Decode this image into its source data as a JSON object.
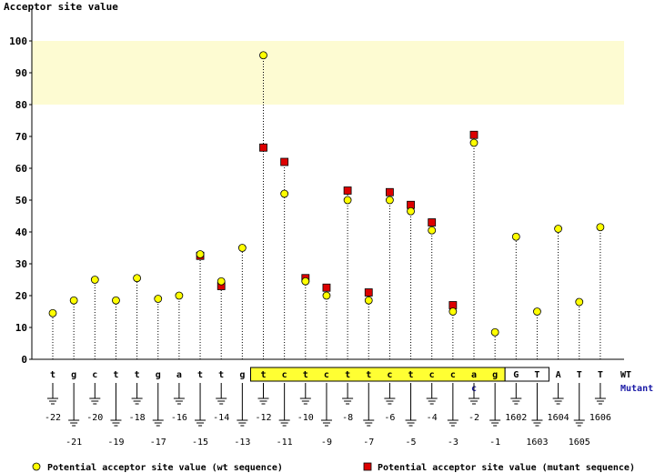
{
  "chart_data": {
    "type": "scatter",
    "title": "Acceptor site value",
    "ylim": [
      0,
      100
    ],
    "yticks": [
      0,
      10,
      20,
      30,
      40,
      50,
      60,
      70,
      80,
      90,
      100
    ],
    "highlight_band": [
      80,
      100
    ],
    "wt_row_label": "WT",
    "mutant_row_label": "Mutant",
    "positions": [
      {
        "base": "t",
        "pos": "-22",
        "wt": 14.5,
        "mut": null
      },
      {
        "base": "g",
        "pos": "-21",
        "wt": 18.5,
        "mut": null
      },
      {
        "base": "c",
        "pos": "-20",
        "wt": 25,
        "mut": null
      },
      {
        "base": "t",
        "pos": "-19",
        "wt": 18.5,
        "mut": null
      },
      {
        "base": "t",
        "pos": "-18",
        "wt": 25.5,
        "mut": null
      },
      {
        "base": "g",
        "pos": "-17",
        "wt": 19,
        "mut": null
      },
      {
        "base": "a",
        "pos": "-16",
        "wt": 20,
        "mut": null
      },
      {
        "base": "t",
        "pos": "-15",
        "wt": 33,
        "mut": 32.5
      },
      {
        "base": "t",
        "pos": "-14",
        "wt": 24.5,
        "mut": 23
      },
      {
        "base": "g",
        "pos": "-13",
        "wt": 35,
        "mut": null
      },
      {
        "base": "t",
        "pos": "-12",
        "wt": 95.5,
        "mut": 66.5
      },
      {
        "base": "c",
        "pos": "-11",
        "wt": 52,
        "mut": 62
      },
      {
        "base": "t",
        "pos": "-10",
        "wt": 24.5,
        "mut": 25.5
      },
      {
        "base": "c",
        "pos": "-9",
        "wt": 20,
        "mut": 22.5
      },
      {
        "base": "t",
        "pos": "-8",
        "wt": 50,
        "mut": 53
      },
      {
        "base": "t",
        "pos": "-7",
        "wt": 18.5,
        "mut": 21
      },
      {
        "base": "c",
        "pos": "-6",
        "wt": 50,
        "mut": 52.5
      },
      {
        "base": "t",
        "pos": "-5",
        "wt": 46.5,
        "mut": 48.5
      },
      {
        "base": "c",
        "pos": "-4",
        "wt": 40.5,
        "mut": 43
      },
      {
        "base": "c",
        "pos": "-3",
        "wt": 15,
        "mut": 17
      },
      {
        "base": "a",
        "pos": "-2",
        "wt": 68,
        "mut": 70.5,
        "mut_base": "c"
      },
      {
        "base": "g",
        "pos": "-1",
        "wt": 8.5,
        "mut": null
      },
      {
        "base": "G",
        "pos": "1602",
        "wt": 38.5,
        "mut": null
      },
      {
        "base": "T",
        "pos": "1603",
        "wt": 15,
        "mut": null
      },
      {
        "base": "A",
        "pos": "1604",
        "wt": 41,
        "mut": null
      },
      {
        "base": "T",
        "pos": "1605",
        "wt": 18,
        "mut": null
      },
      {
        "base": "T",
        "pos": "1606",
        "wt": 41.5,
        "mut": null
      }
    ],
    "legend": {
      "wt": "Potential acceptor site value (wt sequence)",
      "mutant": "Potential acceptor site value (mutant sequence)"
    },
    "colors": {
      "wt_marker": "#ffff00",
      "mutant_marker": "#dd0000",
      "band": "#fdfbd2",
      "box": "#ffff33",
      "mut_text": "#1a1aa6"
    }
  }
}
